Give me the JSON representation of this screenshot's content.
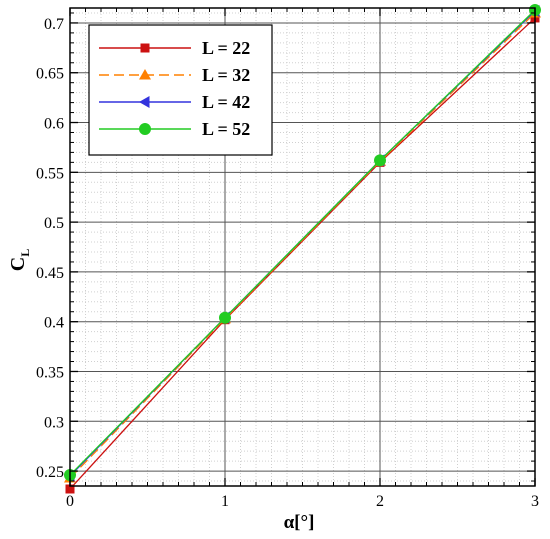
{
  "chart_data": {
    "type": "line",
    "xlabel": "α[°]",
    "ylabel_main": "C",
    "ylabel_sub": "L",
    "xlim": [
      0,
      3
    ],
    "ylim": [
      0.235,
      0.715
    ],
    "x_ticks": [
      0,
      1,
      2,
      3
    ],
    "y_ticks": [
      0.25,
      0.3,
      0.35,
      0.4,
      0.45,
      0.5,
      0.55,
      0.6,
      0.65,
      0.7
    ],
    "y_tick_labels": [
      "0.25",
      "0.3",
      "0.35",
      "0.4",
      "0.45",
      "0.5",
      "0.55",
      "0.6",
      "0.65",
      "0.7"
    ],
    "grid": true,
    "legend_position": "top-left",
    "series": [
      {
        "name": "L = 22",
        "color": "#cc1111",
        "marker": "square",
        "dash": "solid",
        "x": [
          0,
          1,
          2,
          3
        ],
        "y": [
          0.232,
          0.402,
          0.56,
          0.705
        ]
      },
      {
        "name": "L = 32",
        "color": "#ff8000",
        "marker": "triangle",
        "dash": "dash",
        "x": [
          0,
          1,
          2,
          3
        ],
        "y": [
          0.243,
          0.403,
          0.561,
          0.71
        ]
      },
      {
        "name": "L = 42",
        "color": "#3333dd",
        "marker": "triangle-left",
        "dash": "solid",
        "x": [
          0,
          1,
          2,
          3
        ],
        "y": [
          0.245,
          0.404,
          0.562,
          0.712
        ]
      },
      {
        "name": "L = 52",
        "color": "#22cc22",
        "marker": "circle",
        "dash": "solid",
        "x": [
          0,
          1,
          2,
          3
        ],
        "y": [
          0.246,
          0.404,
          0.562,
          0.713
        ]
      }
    ]
  }
}
